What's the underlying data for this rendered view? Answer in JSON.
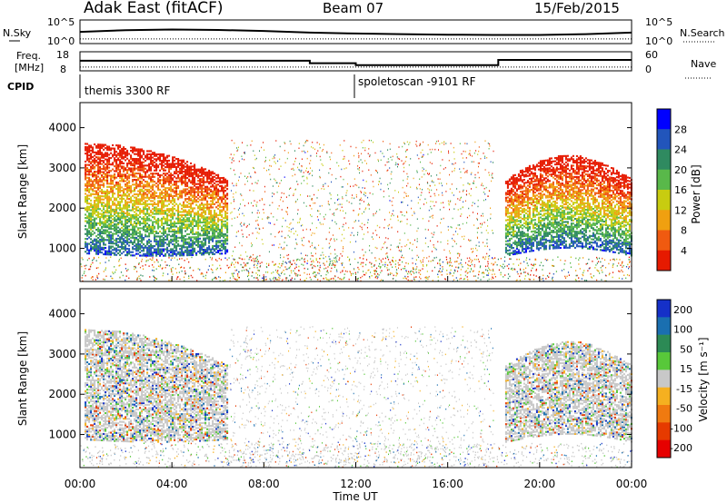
{
  "header": {
    "title": "Adak East (fitACF)",
    "beam": "Beam 07",
    "date": "15/Feb/2015"
  },
  "chart_data": [
    {
      "type": "line",
      "name": "noise-panel",
      "left_label": "N.Sky",
      "right_label": "N.Search",
      "left_ticks": [
        "10^5",
        "10^0"
      ],
      "right_ticks": [
        "10^5",
        "10^0"
      ],
      "yscale": "log",
      "ylim": [
        1,
        100000
      ],
      "x": [
        0,
        2,
        4,
        6,
        8,
        10,
        12,
        14,
        16,
        18,
        20,
        22,
        24
      ],
      "series": [
        {
          "style": "solid",
          "values": [
            300,
            800,
            1200,
            900,
            500,
            200,
            120,
            80,
            60,
            50,
            50,
            80,
            200
          ]
        },
        {
          "style": "dotted",
          "values": [
            5,
            5,
            5,
            5,
            5,
            5,
            5,
            5,
            5,
            5,
            5,
            5,
            5
          ]
        }
      ]
    },
    {
      "type": "line",
      "name": "frequency-panel",
      "left_label": "Freq.",
      "left_unit": "[MHz]",
      "right_label": "Nave",
      "left_ticks": [
        "18",
        "8"
      ],
      "right_ticks": [
        "60",
        "0"
      ],
      "ylim_left": [
        8,
        18
      ],
      "ylim_right": [
        0,
        60
      ],
      "freq_steps": [
        {
          "start": 0.0,
          "end": 10.0,
          "value": 13.3
        },
        {
          "start": 10.0,
          "end": 12.0,
          "value": 11.9
        },
        {
          "start": 12.0,
          "end": 18.2,
          "value": 10.8
        },
        {
          "start": 18.2,
          "end": 24.0,
          "value": 13.8
        }
      ],
      "nave_level": 10
    },
    {
      "type": "table",
      "name": "cpid-panel",
      "label": "CPID",
      "segments": [
        {
          "start": 0.0,
          "end": 12.0,
          "text": "themis 3300 RF"
        },
        {
          "start": 12.0,
          "end": 24.0,
          "text": "spoletoscan -9101 RF"
        }
      ]
    },
    {
      "type": "heatmap",
      "name": "power-panel",
      "ylabel": "Slant Range [km]",
      "ylim": [
        200,
        4600
      ],
      "yticks": [
        "1000",
        "2000",
        "3000",
        "4000"
      ],
      "colorbar_label": "Power [dB]",
      "colorbar_ticks": [
        "4",
        "8",
        "12",
        "16",
        "20",
        "24",
        "28"
      ],
      "colors": [
        "#0000ff",
        "#2255bb",
        "#2f8a60",
        "#59b84a",
        "#c8cc10",
        "#f0a010",
        "#f05a10",
        "#e61a00"
      ],
      "echo_regions": [
        {
          "start": 0.2,
          "end": 6.4,
          "low_km": 800,
          "high_km": 3600
        },
        {
          "start": 18.5,
          "end": 24.0,
          "low_km": 800,
          "high_km": 3300
        }
      ]
    },
    {
      "type": "heatmap",
      "name": "velocity-panel",
      "ylabel": "Slant Range [km]",
      "ylim": [
        200,
        4600
      ],
      "yticks": [
        "1000",
        "2000",
        "3000",
        "4000"
      ],
      "xlabel": "Time UT",
      "xticks": [
        "00:00",
        "04:00",
        "08:00",
        "12:00",
        "16:00",
        "20:00",
        "00:00"
      ],
      "xlim": [
        0,
        24
      ],
      "colorbar_label": "Velocity [m s⁻¹]",
      "colorbar_ticks": [
        "200",
        "100",
        "50",
        "15",
        "-15",
        "-50",
        "-100",
        "-200"
      ],
      "colors": [
        "#1530c8",
        "#1a6fb0",
        "#2c8a55",
        "#58c83a",
        "#c8c8c8",
        "#f5b020",
        "#f07a10",
        "#e63a00",
        "#e60000"
      ],
      "echo_regions": [
        {
          "start": 0.2,
          "end": 6.4,
          "low_km": 800,
          "high_km": 3600
        },
        {
          "start": 18.5,
          "end": 24.0,
          "low_km": 800,
          "high_km": 3300
        }
      ]
    }
  ]
}
